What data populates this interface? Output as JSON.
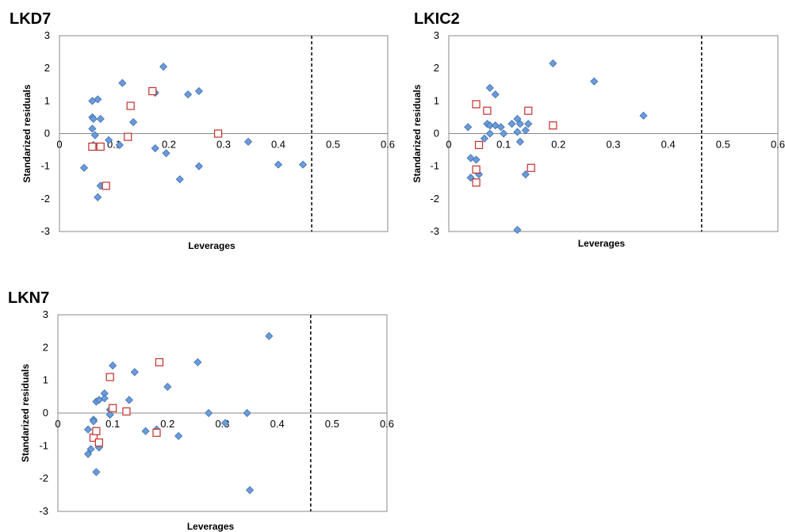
{
  "chart_data": [
    {
      "type": "scatter",
      "title": "LKD7",
      "xlabel": "Leverages",
      "ylabel": "Standarized residuals",
      "xlim": [
        0,
        0.6
      ],
      "ylim": [
        -3,
        3
      ],
      "x_ticks": [
        "0",
        "0.1",
        "0.2",
        "0.3",
        "0.4",
        "0.5",
        "0.6"
      ],
      "y_ticks": [
        "3",
        "2",
        "1",
        "0",
        "-1",
        "-2",
        "-3"
      ],
      "grid": false,
      "threshold_x": 0.461,
      "colors": {
        "diamond_fill": "#6b9bd8",
        "diamond_stroke": "#3d6fb3",
        "square_stroke": "#c0302a",
        "threshold": "#000000",
        "axis": "#888888"
      },
      "series": [
        {
          "marker": "diamond",
          "points": [
            [
              0.045,
              -1.05
            ],
            [
              0.06,
              1.0
            ],
            [
              0.06,
              0.5
            ],
            [
              0.06,
              0.15
            ],
            [
              0.062,
              0.45
            ],
            [
              0.065,
              -0.05
            ],
            [
              0.07,
              1.05
            ],
            [
              0.075,
              0.45
            ],
            [
              0.09,
              -0.2
            ],
            [
              0.11,
              -0.35
            ],
            [
              0.115,
              1.55
            ],
            [
              0.135,
              0.35
            ],
            [
              0.175,
              -0.45
            ],
            [
              0.175,
              1.25
            ],
            [
              0.19,
              2.05
            ],
            [
              0.195,
              -0.6
            ],
            [
              0.22,
              -1.4
            ],
            [
              0.235,
              1.2
            ],
            [
              0.255,
              1.3
            ],
            [
              0.255,
              -1.0
            ],
            [
              0.345,
              -0.25
            ],
            [
              0.4,
              -0.95
            ],
            [
              0.445,
              -0.95
            ],
            [
              0.07,
              -1.95
            ],
            [
              0.075,
              -1.6
            ],
            [
              0.062,
              -0.35
            ]
          ]
        },
        {
          "marker": "square",
          "points": [
            [
              0.06,
              -0.4
            ],
            [
              0.075,
              -0.4
            ],
            [
              0.085,
              -1.6
            ],
            [
              0.125,
              -0.1
            ],
            [
              0.13,
              0.85
            ],
            [
              0.17,
              1.3
            ],
            [
              0.29,
              0.0
            ]
          ]
        }
      ]
    },
    {
      "type": "scatter",
      "title": "LKIC2",
      "xlabel": "Leverages",
      "ylabel": "Standarized residuals",
      "xlim": [
        0,
        0.6
      ],
      "ylim": [
        -3,
        3
      ],
      "x_ticks": [
        "0",
        "0.1",
        "0.2",
        "0.3",
        "0.4",
        "0.5",
        "0.6"
      ],
      "y_ticks": [
        "3",
        "2",
        "1",
        "0",
        "-1",
        "-2",
        "-3"
      ],
      "grid": false,
      "threshold_x": 0.461,
      "colors": {
        "diamond_fill": "#6b9bd8",
        "diamond_stroke": "#3d6fb3",
        "square_stroke": "#c0302a",
        "threshold": "#000000",
        "axis": "#888888"
      },
      "series": [
        {
          "marker": "diamond",
          "points": [
            [
              0.035,
              0.2
            ],
            [
              0.04,
              -0.75
            ],
            [
              0.04,
              -1.35
            ],
            [
              0.05,
              -0.8
            ],
            [
              0.055,
              -1.25
            ],
            [
              0.065,
              -0.15
            ],
            [
              0.07,
              0.3
            ],
            [
              0.075,
              1.4
            ],
            [
              0.075,
              0.25
            ],
            [
              0.085,
              1.2
            ],
            [
              0.085,
              0.25
            ],
            [
              0.095,
              0.2
            ],
            [
              0.1,
              0.0
            ],
            [
              0.115,
              0.3
            ],
            [
              0.125,
              0.05
            ],
            [
              0.125,
              0.45
            ],
            [
              0.13,
              0.3
            ],
            [
              0.13,
              -0.25
            ],
            [
              0.14,
              -1.25
            ],
            [
              0.14,
              0.1
            ],
            [
              0.145,
              0.3
            ],
            [
              0.19,
              2.15
            ],
            [
              0.265,
              1.6
            ],
            [
              0.355,
              0.55
            ],
            [
              0.125,
              -2.95
            ],
            [
              0.075,
              0.0
            ]
          ]
        },
        {
          "marker": "square",
          "points": [
            [
              0.05,
              0.9
            ],
            [
              0.05,
              -1.1
            ],
            [
              0.05,
              -1.5
            ],
            [
              0.055,
              -0.35
            ],
            [
              0.07,
              0.7
            ],
            [
              0.145,
              0.7
            ],
            [
              0.15,
              -1.05
            ],
            [
              0.19,
              0.25
            ]
          ]
        }
      ]
    },
    {
      "type": "scatter",
      "title": "LKN7",
      "xlabel": "Leverages",
      "ylabel": "Standarized residuals",
      "xlim": [
        0,
        0.6
      ],
      "ylim": [
        -3,
        3
      ],
      "x_ticks": [
        "0",
        "0.1",
        "0.2",
        "0.3",
        "0.4",
        "0.5",
        "0.6"
      ],
      "y_ticks": [
        "3",
        "2",
        "1",
        "0",
        "-1",
        "-2",
        "-3"
      ],
      "grid": false,
      "threshold_x": 0.461,
      "colors": {
        "diamond_fill": "#6b9bd8",
        "diamond_stroke": "#3d6fb3",
        "square_stroke": "#c0302a",
        "threshold": "#000000",
        "axis": "#888888"
      },
      "series": [
        {
          "marker": "diamond",
          "points": [
            [
              0.055,
              -0.5
            ],
            [
              0.055,
              -1.25
            ],
            [
              0.06,
              -1.1
            ],
            [
              0.065,
              -0.2
            ],
            [
              0.065,
              -0.25
            ],
            [
              0.07,
              -1.8
            ],
            [
              0.07,
              0.35
            ],
            [
              0.075,
              0.4
            ],
            [
              0.075,
              -1.05
            ],
            [
              0.085,
              0.6
            ],
            [
              0.085,
              0.45
            ],
            [
              0.095,
              0.1
            ],
            [
              0.095,
              -0.05
            ],
            [
              0.1,
              1.45
            ],
            [
              0.13,
              0.4
            ],
            [
              0.14,
              1.25
            ],
            [
              0.16,
              -0.55
            ],
            [
              0.18,
              -0.5
            ],
            [
              0.2,
              0.8
            ],
            [
              0.22,
              -0.7
            ],
            [
              0.255,
              1.55
            ],
            [
              0.275,
              0.0
            ],
            [
              0.305,
              -0.3
            ],
            [
              0.345,
              0.0
            ],
            [
              0.385,
              2.35
            ],
            [
              0.35,
              -2.35
            ]
          ]
        },
        {
          "marker": "square",
          "points": [
            [
              0.065,
              -0.75
            ],
            [
              0.07,
              -0.55
            ],
            [
              0.075,
              -0.9
            ],
            [
              0.095,
              1.1
            ],
            [
              0.1,
              0.15
            ],
            [
              0.125,
              0.05
            ],
            [
              0.18,
              -0.6
            ],
            [
              0.185,
              1.55
            ]
          ]
        }
      ]
    }
  ]
}
